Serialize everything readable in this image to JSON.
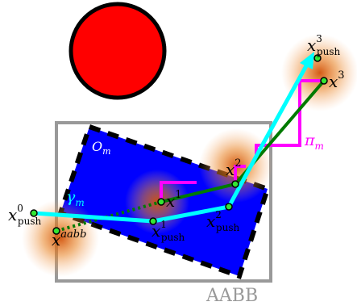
{
  "colors": {
    "background": "#ffffff",
    "obstacle_ball": "#ff0000",
    "obstacle_box": "#0000ff",
    "aabb": "#999999",
    "push_path": "#00ffff",
    "plan_path": "#007a00",
    "pi_path": "#ff00ff",
    "node_fill": "#33e633",
    "halo": "#e8700f"
  },
  "labels": {
    "obstacle": {
      "base": "O",
      "sub": "m"
    },
    "gamma": {
      "base": "γ",
      "sub": "m"
    },
    "pi": {
      "base": "π",
      "sub": "m"
    },
    "aabb": "AABB",
    "x_push0": {
      "base": "x",
      "sup": "0",
      "sub": "push"
    },
    "x_aabb": {
      "base": "x",
      "sup": "aabb"
    },
    "x_push1": {
      "base": "x",
      "sup": "1",
      "sub": "push"
    },
    "x1": {
      "base": "x",
      "sup": "1"
    },
    "x_push2": {
      "base": "x",
      "sup": "2",
      "sub": "push"
    },
    "x2": {
      "base": "x",
      "sup": "2"
    },
    "x_push3": {
      "base": "x",
      "sup": "3",
      "sub": "push"
    },
    "x3": {
      "base": "x",
      "sup": "3"
    }
  }
}
